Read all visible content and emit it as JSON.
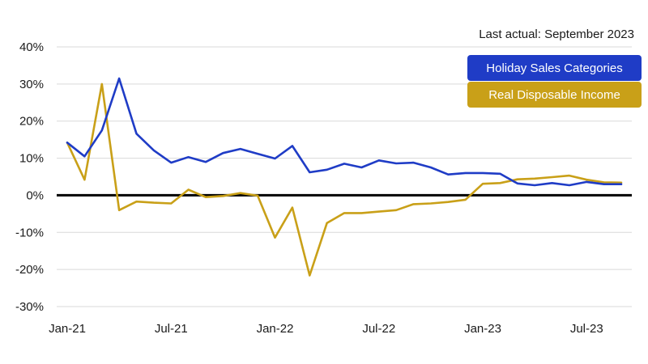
{
  "note": "Last actual: September 2023",
  "chart_data": {
    "type": "line",
    "x": [
      "2021-01",
      "2021-02",
      "2021-03",
      "2021-04",
      "2021-05",
      "2021-06",
      "2021-07",
      "2021-08",
      "2021-09",
      "2021-10",
      "2021-11",
      "2021-12",
      "2022-01",
      "2022-02",
      "2022-03",
      "2022-04",
      "2022-05",
      "2022-06",
      "2022-07",
      "2022-08",
      "2022-09",
      "2022-10",
      "2022-11",
      "2022-12",
      "2023-01",
      "2023-02",
      "2023-03",
      "2023-04",
      "2023-05",
      "2023-06",
      "2023-07",
      "2023-08",
      "2023-09"
    ],
    "x_ticks": [
      "Jan-21",
      "Jul-21",
      "Jan-22",
      "Jul-22",
      "Jan-23",
      "Jul-23"
    ],
    "y_ticks": [
      "-30%",
      "-20%",
      "-10%",
      "0%",
      "10%",
      "20%",
      "30%",
      "40%"
    ],
    "ylim": [
      -30,
      40
    ],
    "grid": true,
    "legend_position": "top-right",
    "series": [
      {
        "name": "Holiday Sales Categories",
        "color": "#1f3cc6",
        "values": [
          14.2,
          10.5,
          17.5,
          31.5,
          16.6,
          12.1,
          8.8,
          10.3,
          9.0,
          11.4,
          12.5,
          11.2,
          9.9,
          13.3,
          6.2,
          6.9,
          8.5,
          7.5,
          9.4,
          8.6,
          8.8,
          7.5,
          5.6,
          6.0,
          6.0,
          5.8,
          3.2,
          2.7,
          3.3,
          2.7,
          3.6,
          3.0,
          3.0
        ]
      },
      {
        "name": "Real Disposable Income",
        "color": "#c9a018",
        "values": [
          14.2,
          4.2,
          30.0,
          -4.0,
          -1.7,
          -2.0,
          -2.2,
          1.5,
          -0.5,
          -0.2,
          0.6,
          -0.1,
          -11.4,
          -3.3,
          -21.6,
          -7.5,
          -4.8,
          -4.8,
          -4.4,
          -4.0,
          -2.4,
          -2.2,
          -1.8,
          -1.2,
          3.1,
          3.3,
          4.3,
          4.5,
          4.9,
          5.3,
          4.2,
          3.5,
          3.4
        ]
      }
    ]
  }
}
